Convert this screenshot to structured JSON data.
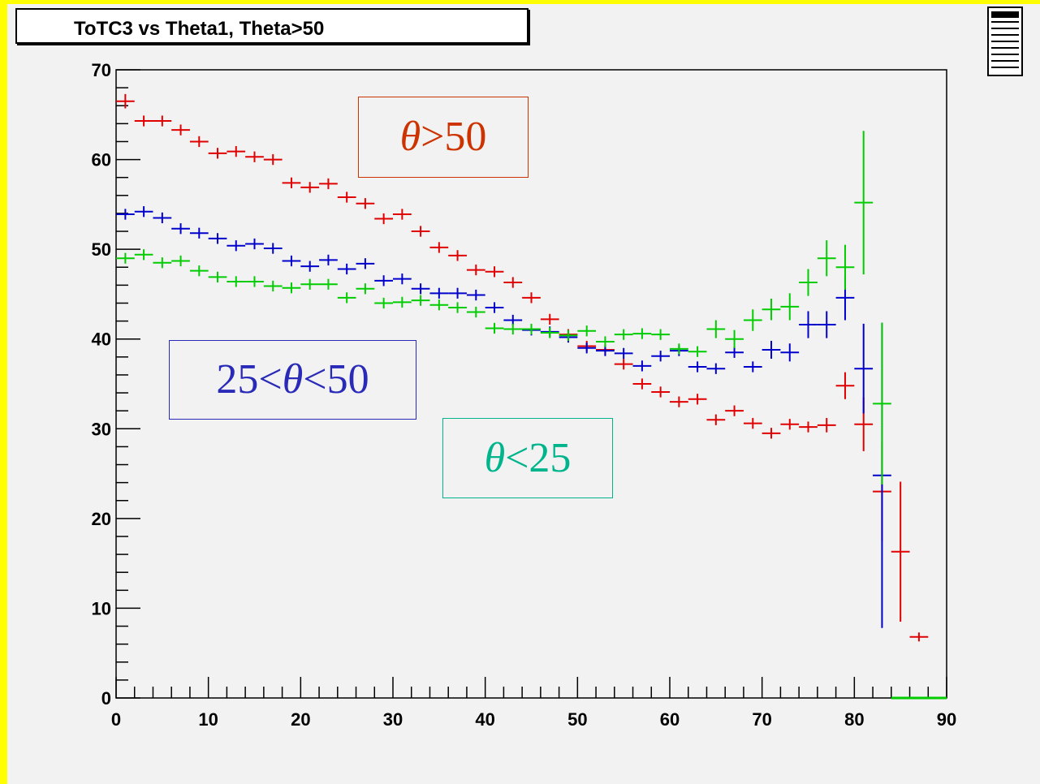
{
  "title": "ToTC3 vs Theta1, Theta>50",
  "colors": {
    "red": "#e00000",
    "blue": "#0000cc",
    "green": "#00cc00",
    "legend_teal": "#00b48c"
  },
  "legend": {
    "red": {
      "symbol": "θ",
      "text": " >50"
    },
    "blue": {
      "prefix": "25<",
      "symbol": "θ",
      "text": " <50"
    },
    "green": {
      "symbol": "θ",
      "text": " <25"
    }
  },
  "icons": {
    "panel": "panel-icon"
  },
  "chart_data": {
    "type": "scatter",
    "title": "ToTC3 vs Theta1, Theta>50",
    "xlabel": "",
    "ylabel": "",
    "xlim": [
      0,
      90
    ],
    "ylim": [
      0,
      70
    ],
    "x_ticks": [
      0,
      10,
      20,
      30,
      40,
      50,
      60,
      70,
      80,
      90
    ],
    "y_ticks": [
      0,
      10,
      20,
      30,
      40,
      50,
      60,
      70
    ],
    "bin_width": 2,
    "grid": false,
    "series": [
      {
        "color": "#e00000",
        "x": [
          1,
          3,
          5,
          7,
          9,
          11,
          13,
          15,
          17,
          19,
          21,
          23,
          25,
          27,
          29,
          31,
          33,
          35,
          37,
          39,
          41,
          43,
          45,
          47,
          49,
          51,
          53,
          55,
          57,
          59,
          61,
          63,
          65,
          67,
          69,
          71,
          73,
          75,
          77,
          79,
          81,
          83,
          85,
          87
        ],
        "y": [
          66.5,
          64.3,
          64.3,
          63.3,
          62.0,
          60.7,
          60.9,
          60.3,
          60.0,
          57.4,
          56.9,
          57.3,
          55.8,
          55.1,
          53.4,
          53.9,
          52.0,
          50.2,
          49.3,
          47.7,
          47.5,
          46.3,
          44.6,
          42.2,
          40.5,
          39.2,
          38.8,
          37.2,
          35.0,
          34.1,
          33.0,
          33.3,
          31.0,
          32.0,
          30.6,
          29.5,
          30.5,
          30.2,
          30.4,
          34.8,
          30.5,
          23.0,
          16.3,
          6.8
        ],
        "err": [
          0.8,
          0.6,
          0.6,
          0.6,
          0.6,
          0.6,
          0.6,
          0.6,
          0.6,
          0.6,
          0.6,
          0.6,
          0.6,
          0.6,
          0.6,
          0.6,
          0.6,
          0.6,
          0.6,
          0.6,
          0.6,
          0.6,
          0.6,
          0.6,
          0.6,
          0.6,
          0.6,
          0.6,
          0.6,
          0.6,
          0.6,
          0.6,
          0.6,
          0.6,
          0.6,
          0.6,
          0.6,
          0.6,
          0.8,
          1.5,
          3.0,
          5.5,
          7.8,
          0
        ]
      },
      {
        "color": "#0000cc",
        "x": [
          1,
          3,
          5,
          7,
          9,
          11,
          13,
          15,
          17,
          19,
          21,
          23,
          25,
          27,
          29,
          31,
          33,
          35,
          37,
          39,
          41,
          43,
          45,
          47,
          49,
          51,
          53,
          55,
          57,
          59,
          61,
          63,
          65,
          67,
          69,
          71,
          73,
          75,
          77,
          79,
          81,
          83
        ],
        "y": [
          53.9,
          54.2,
          53.5,
          52.3,
          51.8,
          51.2,
          50.4,
          50.6,
          50.1,
          48.7,
          48.1,
          48.8,
          47.8,
          48.4,
          46.5,
          46.7,
          45.6,
          45.1,
          45.1,
          44.9,
          43.5,
          42.1,
          41.0,
          40.8,
          40.2,
          39.0,
          38.7,
          38.4,
          37.0,
          38.1,
          38.7,
          36.9,
          36.7,
          38.5,
          36.9,
          38.8,
          38.5,
          41.6,
          41.6,
          44.6,
          36.7,
          24.8
        ],
        "err": [
          0.6,
          0.6,
          0.6,
          0.6,
          0.6,
          0.6,
          0.6,
          0.6,
          0.6,
          0.6,
          0.6,
          0.6,
          0.6,
          0.6,
          0.6,
          0.6,
          0.6,
          0.6,
          0.6,
          0.6,
          0.6,
          0.6,
          0.6,
          0.6,
          0.6,
          0.6,
          0.6,
          0.6,
          0.6,
          0.6,
          0.6,
          0.6,
          0.6,
          0.6,
          0.6,
          1.0,
          1.0,
          1.5,
          1.5,
          2.5,
          5.0,
          17.0
        ]
      },
      {
        "color": "#00cc00",
        "x": [
          1,
          3,
          5,
          7,
          9,
          11,
          13,
          15,
          17,
          19,
          21,
          23,
          25,
          27,
          29,
          31,
          33,
          35,
          37,
          39,
          41,
          43,
          45,
          47,
          49,
          51,
          53,
          55,
          57,
          59,
          61,
          63,
          65,
          67,
          69,
          71,
          73,
          75,
          77,
          79,
          81,
          83
        ],
        "y": [
          49.0,
          49.4,
          48.5,
          48.7,
          47.6,
          46.9,
          46.4,
          46.4,
          45.9,
          45.7,
          46.1,
          46.1,
          44.6,
          45.6,
          44.0,
          44.1,
          44.3,
          43.8,
          43.5,
          43.0,
          41.2,
          41.1,
          41.1,
          40.7,
          40.4,
          40.9,
          39.7,
          40.5,
          40.6,
          40.5,
          38.9,
          38.6,
          41.1,
          40.0,
          42.1,
          43.3,
          43.6,
          46.3,
          49.0,
          48.0,
          55.2,
          32.8
        ],
        "err": [
          0.6,
          0.6,
          0.6,
          0.6,
          0.6,
          0.6,
          0.6,
          0.6,
          0.6,
          0.6,
          0.6,
          0.6,
          0.6,
          0.6,
          0.6,
          0.6,
          0.6,
          0.6,
          0.6,
          0.6,
          0.6,
          0.6,
          0.6,
          0.6,
          0.6,
          0.6,
          0.6,
          0.6,
          0.6,
          0.6,
          0.6,
          0.6,
          1.0,
          1.0,
          1.2,
          1.2,
          1.5,
          1.5,
          2.0,
          2.5,
          8.0,
          9.0
        ]
      }
    ]
  }
}
